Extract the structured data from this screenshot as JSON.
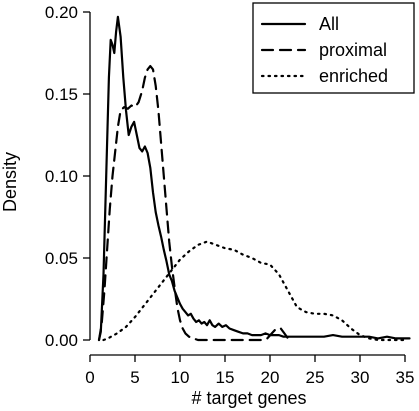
{
  "chart_data": {
    "type": "line",
    "xlabel": "# target genes",
    "ylabel": "Density",
    "xlim": [
      0,
      36
    ],
    "ylim": [
      0,
      0.2
    ],
    "x_ticks": [
      0,
      5,
      10,
      15,
      20,
      25,
      30,
      35
    ],
    "x_tick_labels": [
      "0",
      "5",
      "10",
      "15",
      "20",
      "25",
      "30",
      "35"
    ],
    "y_ticks": [
      0,
      0.05,
      0.1,
      0.15,
      0.2
    ],
    "y_tick_labels": [
      "0.00",
      "0.05",
      "0.10",
      "0.15",
      "0.20"
    ],
    "grid": false,
    "legend_position": "top-right",
    "series": [
      {
        "name": "All",
        "line_style": "solid",
        "color": "#000000",
        "points": [
          [
            1.0,
            0.0
          ],
          [
            1.2,
            0.005
          ],
          [
            1.5,
            0.04
          ],
          [
            1.8,
            0.1
          ],
          [
            2.1,
            0.16
          ],
          [
            2.3,
            0.183
          ],
          [
            2.5,
            0.18
          ],
          [
            2.7,
            0.175
          ],
          [
            2.9,
            0.188
          ],
          [
            3.1,
            0.197
          ],
          [
            3.4,
            0.185
          ],
          [
            3.7,
            0.16
          ],
          [
            4.0,
            0.14
          ],
          [
            4.3,
            0.125
          ],
          [
            4.6,
            0.13
          ],
          [
            4.9,
            0.133
          ],
          [
            5.2,
            0.125
          ],
          [
            5.5,
            0.117
          ],
          [
            5.8,
            0.115
          ],
          [
            6.1,
            0.118
          ],
          [
            6.4,
            0.114
          ],
          [
            6.7,
            0.105
          ],
          [
            7.0,
            0.09
          ],
          [
            7.3,
            0.078
          ],
          [
            7.6,
            0.07
          ],
          [
            7.9,
            0.063
          ],
          [
            8.2,
            0.055
          ],
          [
            8.5,
            0.048
          ],
          [
            8.8,
            0.04
          ],
          [
            9.1,
            0.036
          ],
          [
            9.4,
            0.03
          ],
          [
            9.7,
            0.026
          ],
          [
            10.0,
            0.022
          ],
          [
            10.3,
            0.019
          ],
          [
            10.6,
            0.017
          ],
          [
            10.9,
            0.015
          ],
          [
            11.2,
            0.016
          ],
          [
            11.5,
            0.013
          ],
          [
            11.8,
            0.011
          ],
          [
            12.1,
            0.012
          ],
          [
            12.4,
            0.01
          ],
          [
            12.7,
            0.011
          ],
          [
            13.0,
            0.009
          ],
          [
            13.3,
            0.012
          ],
          [
            13.6,
            0.009
          ],
          [
            13.9,
            0.008
          ],
          [
            14.3,
            0.01
          ],
          [
            14.7,
            0.008
          ],
          [
            15.1,
            0.009
          ],
          [
            15.5,
            0.007
          ],
          [
            16.0,
            0.006
          ],
          [
            16.5,
            0.005
          ],
          [
            17.0,
            0.004
          ],
          [
            17.5,
            0.004
          ],
          [
            18.0,
            0.003
          ],
          [
            18.5,
            0.003
          ],
          [
            19.0,
            0.003
          ],
          [
            19.5,
            0.004
          ],
          [
            20.0,
            0.003
          ],
          [
            20.5,
            0.003
          ],
          [
            21.0,
            0.003
          ],
          [
            21.5,
            0.002
          ],
          [
            22.0,
            0.002
          ],
          [
            22.5,
            0.002
          ],
          [
            23.0,
            0.002
          ],
          [
            24.0,
            0.002
          ],
          [
            25.0,
            0.002
          ],
          [
            26.0,
            0.002
          ],
          [
            27.0,
            0.003
          ],
          [
            28.0,
            0.002
          ],
          [
            29.0,
            0.002
          ],
          [
            30.0,
            0.002
          ],
          [
            31.0,
            0.002
          ],
          [
            32.0,
            0.001
          ],
          [
            33.0,
            0.002
          ],
          [
            34.0,
            0.001
          ],
          [
            35.0,
            0.001
          ],
          [
            35.5,
            0.001
          ]
        ]
      },
      {
        "name": "proximal",
        "line_style": "dashed",
        "color": "#000000",
        "points": [
          [
            1.0,
            0.0
          ],
          [
            1.3,
            0.01
          ],
          [
            1.6,
            0.03
          ],
          [
            1.9,
            0.055
          ],
          [
            2.2,
            0.08
          ],
          [
            2.5,
            0.1
          ],
          [
            2.8,
            0.115
          ],
          [
            3.1,
            0.13
          ],
          [
            3.4,
            0.14
          ],
          [
            3.8,
            0.142
          ],
          [
            4.2,
            0.141
          ],
          [
            4.6,
            0.143
          ],
          [
            5.0,
            0.142
          ],
          [
            5.4,
            0.145
          ],
          [
            5.8,
            0.152
          ],
          [
            6.1,
            0.16
          ],
          [
            6.4,
            0.165
          ],
          [
            6.7,
            0.167
          ],
          [
            7.0,
            0.165
          ],
          [
            7.3,
            0.155
          ],
          [
            7.6,
            0.14
          ],
          [
            7.9,
            0.12
          ],
          [
            8.2,
            0.1
          ],
          [
            8.5,
            0.08
          ],
          [
            8.8,
            0.06
          ],
          [
            9.1,
            0.045
          ],
          [
            9.4,
            0.032
          ],
          [
            9.7,
            0.02
          ],
          [
            10.0,
            0.012
          ],
          [
            10.3,
            0.007
          ],
          [
            10.6,
            0.004
          ],
          [
            11.0,
            0.002
          ],
          [
            11.5,
            0.001
          ],
          [
            12.0,
            0.0
          ],
          [
            13.0,
            0.0
          ],
          [
            15.0,
            0.0
          ],
          [
            17.0,
            0.0
          ],
          [
            18.5,
            0.0
          ],
          [
            19.2,
            0.0
          ],
          [
            19.7,
            0.001
          ],
          [
            20.2,
            0.004
          ],
          [
            20.7,
            0.007
          ],
          [
            21.2,
            0.007
          ],
          [
            21.6,
            0.004
          ],
          [
            22.0,
            0.001
          ],
          [
            22.5,
            0.0
          ]
        ]
      },
      {
        "name": "enriched",
        "line_style": "dotted",
        "color": "#000000",
        "points": [
          [
            1.5,
            0.0
          ],
          [
            2.0,
            0.001
          ],
          [
            3.0,
            0.004
          ],
          [
            4.0,
            0.008
          ],
          [
            5.0,
            0.014
          ],
          [
            6.0,
            0.021
          ],
          [
            7.0,
            0.028
          ],
          [
            8.0,
            0.035
          ],
          [
            9.0,
            0.042
          ],
          [
            10.0,
            0.049
          ],
          [
            11.0,
            0.054
          ],
          [
            12.0,
            0.058
          ],
          [
            13.0,
            0.06
          ],
          [
            14.0,
            0.058
          ],
          [
            15.0,
            0.056
          ],
          [
            16.0,
            0.055
          ],
          [
            17.0,
            0.052
          ],
          [
            18.0,
            0.05
          ],
          [
            19.0,
            0.047
          ],
          [
            20.0,
            0.046
          ],
          [
            21.0,
            0.04
          ],
          [
            22.0,
            0.03
          ],
          [
            23.0,
            0.02
          ],
          [
            24.0,
            0.017
          ],
          [
            25.0,
            0.016
          ],
          [
            26.0,
            0.016
          ],
          [
            27.0,
            0.015
          ],
          [
            28.0,
            0.012
          ],
          [
            29.0,
            0.007
          ],
          [
            30.0,
            0.003
          ],
          [
            31.0,
            0.001
          ],
          [
            32.0,
            0.0
          ],
          [
            33.0,
            0.0
          ],
          [
            34.0,
            0.0
          ],
          [
            35.0,
            0.0
          ]
        ]
      }
    ]
  }
}
